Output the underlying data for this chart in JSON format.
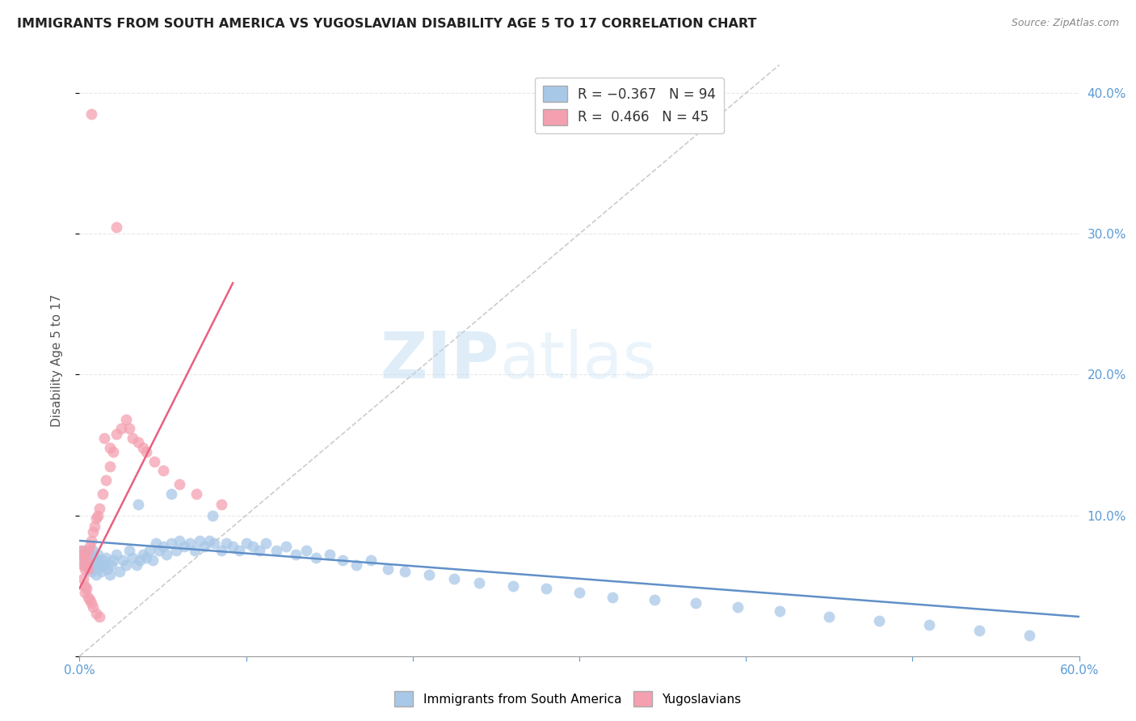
{
  "title": "IMMIGRANTS FROM SOUTH AMERICA VS YUGOSLAVIAN DISABILITY AGE 5 TO 17 CORRELATION CHART",
  "source": "Source: ZipAtlas.com",
  "ylabel": "Disability Age 5 to 17",
  "xlim": [
    0.0,
    0.6
  ],
  "ylim": [
    0.0,
    0.42
  ],
  "color_blue": "#a8c8e8",
  "color_pink": "#f4a0b0",
  "color_blue_line": "#6090c8",
  "color_pink_line": "#e86080",
  "color_blue_axis": "#5b9bd5",
  "watermark_zip": "ZIP",
  "watermark_atlas": "atlas",
  "background_color": "#ffffff",
  "grid_color": "#e8e8e8",
  "blue_scatter_x": [
    0.001,
    0.002,
    0.002,
    0.003,
    0.003,
    0.004,
    0.004,
    0.005,
    0.005,
    0.006,
    0.006,
    0.007,
    0.007,
    0.008,
    0.008,
    0.009,
    0.009,
    0.01,
    0.01,
    0.011,
    0.011,
    0.012,
    0.013,
    0.014,
    0.015,
    0.016,
    0.017,
    0.018,
    0.019,
    0.02,
    0.022,
    0.024,
    0.026,
    0.028,
    0.03,
    0.032,
    0.034,
    0.036,
    0.038,
    0.04,
    0.042,
    0.044,
    0.046,
    0.048,
    0.05,
    0.052,
    0.055,
    0.058,
    0.06,
    0.063,
    0.066,
    0.069,
    0.072,
    0.075,
    0.078,
    0.081,
    0.085,
    0.088,
    0.092,
    0.096,
    0.1,
    0.104,
    0.108,
    0.112,
    0.118,
    0.124,
    0.13,
    0.136,
    0.142,
    0.15,
    0.158,
    0.166,
    0.175,
    0.185,
    0.195,
    0.21,
    0.225,
    0.24,
    0.26,
    0.28,
    0.3,
    0.32,
    0.345,
    0.37,
    0.395,
    0.42,
    0.45,
    0.48,
    0.51,
    0.54,
    0.57,
    0.035,
    0.055,
    0.08
  ],
  "blue_scatter_y": [
    0.072,
    0.075,
    0.068,
    0.07,
    0.065,
    0.073,
    0.068,
    0.072,
    0.063,
    0.07,
    0.065,
    0.068,
    0.06,
    0.075,
    0.065,
    0.07,
    0.063,
    0.068,
    0.058,
    0.072,
    0.065,
    0.063,
    0.06,
    0.068,
    0.065,
    0.07,
    0.062,
    0.058,
    0.065,
    0.068,
    0.072,
    0.06,
    0.068,
    0.065,
    0.075,
    0.07,
    0.065,
    0.068,
    0.072,
    0.07,
    0.075,
    0.068,
    0.08,
    0.075,
    0.078,
    0.072,
    0.08,
    0.075,
    0.082,
    0.078,
    0.08,
    0.075,
    0.082,
    0.078,
    0.082,
    0.08,
    0.075,
    0.08,
    0.078,
    0.075,
    0.08,
    0.078,
    0.075,
    0.08,
    0.075,
    0.078,
    0.072,
    0.075,
    0.07,
    0.072,
    0.068,
    0.065,
    0.068,
    0.062,
    0.06,
    0.058,
    0.055,
    0.052,
    0.05,
    0.048,
    0.045,
    0.042,
    0.04,
    0.038,
    0.035,
    0.032,
    0.028,
    0.025,
    0.022,
    0.018,
    0.015,
    0.108,
    0.115,
    0.1
  ],
  "pink_scatter_x": [
    0.001,
    0.002,
    0.002,
    0.003,
    0.003,
    0.004,
    0.004,
    0.005,
    0.005,
    0.006,
    0.007,
    0.008,
    0.009,
    0.01,
    0.011,
    0.012,
    0.014,
    0.016,
    0.018,
    0.02,
    0.002,
    0.003,
    0.003,
    0.004,
    0.005,
    0.006,
    0.007,
    0.008,
    0.01,
    0.012,
    0.015,
    0.018,
    0.022,
    0.025,
    0.028,
    0.03,
    0.032,
    0.035,
    0.038,
    0.04,
    0.045,
    0.05,
    0.06,
    0.07,
    0.085
  ],
  "pink_scatter_y": [
    0.075,
    0.072,
    0.065,
    0.068,
    0.062,
    0.07,
    0.065,
    0.075,
    0.062,
    0.078,
    0.082,
    0.088,
    0.092,
    0.098,
    0.1,
    0.105,
    0.115,
    0.125,
    0.135,
    0.145,
    0.055,
    0.05,
    0.045,
    0.048,
    0.042,
    0.04,
    0.038,
    0.035,
    0.03,
    0.028,
    0.155,
    0.148,
    0.158,
    0.162,
    0.168,
    0.162,
    0.155,
    0.152,
    0.148,
    0.145,
    0.138,
    0.132,
    0.122,
    0.115,
    0.108
  ],
  "pink_outlier_x": [
    0.022
  ],
  "pink_outlier_y": [
    0.305
  ],
  "pink_top_x": [
    0.007
  ],
  "pink_top_y": [
    0.385
  ],
  "blue_line_x": [
    0.0,
    0.6
  ],
  "blue_line_y": [
    0.082,
    0.028
  ],
  "pink_line_x": [
    0.0,
    0.092
  ],
  "pink_line_y": [
    0.048,
    0.265
  ],
  "ref_line_x": [
    0.0,
    0.42
  ],
  "ref_line_y": [
    0.0,
    0.42
  ]
}
